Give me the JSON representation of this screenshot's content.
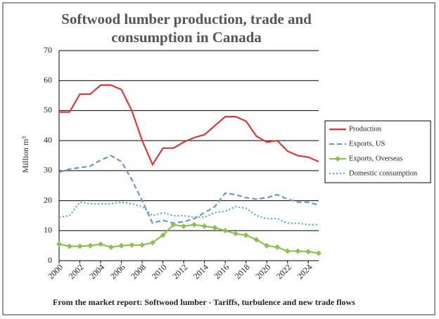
{
  "chart_data": {
    "type": "line",
    "title": "Softwood lumber production, trade and consumption in Canada",
    "y_label": "Million m³",
    "note": "From the market report: Softwood lumber - Tariffs, turbulence and new trade flows",
    "x": [
      2000,
      2001,
      2002,
      2003,
      2004,
      2005,
      2006,
      2007,
      2008,
      2009,
      2010,
      2011,
      2012,
      2013,
      2014,
      2015,
      2016,
      2017,
      2018,
      2019,
      2020,
      2021,
      2022,
      2023,
      2024,
      2025
    ],
    "xlim": [
      2000,
      2025
    ],
    "xticks": [
      2000,
      2002,
      2004,
      2006,
      2008,
      2010,
      2012,
      2014,
      2016,
      2018,
      2020,
      2022,
      2024
    ],
    "ylim": [
      0,
      70
    ],
    "yticks": [
      0,
      10,
      20,
      30,
      40,
      50,
      60,
      70
    ],
    "grid": true,
    "legend": "right",
    "series": [
      {
        "name": "Production",
        "color": "#d9383a",
        "style": "solid",
        "values": [
          49.5,
          49.5,
          55.5,
          55.5,
          58.5,
          58.5,
          57,
          50,
          40,
          32,
          37.5,
          37.5,
          39.5,
          41,
          42,
          45,
          48,
          48,
          46.5,
          41.5,
          39.5,
          40,
          36.5,
          35,
          34.5,
          33
        ]
      },
      {
        "name": "Exports, US",
        "color": "#6f95c9",
        "style": "dashed",
        "values": [
          29.5,
          30.5,
          31,
          31.5,
          33.5,
          35,
          33,
          27,
          20,
          12.5,
          13.5,
          12.5,
          13,
          14,
          16,
          18,
          22.5,
          22,
          21,
          20.5,
          21,
          22,
          20.5,
          19.5,
          19.5,
          18.5
        ]
      },
      {
        "name": "Exports, Overseas",
        "color": "#8cc152",
        "style": "solid",
        "marker": "diamond",
        "values": [
          5.5,
          4.8,
          4.8,
          5,
          5.5,
          4.5,
          5,
          5.2,
          5.2,
          6,
          8.5,
          12,
          11.5,
          12,
          11.5,
          11,
          10,
          9,
          8.5,
          7,
          5,
          4.5,
          3.2,
          3.2,
          3,
          2.5
        ]
      },
      {
        "name": "Domestic consumption",
        "color": "#4fa8d8",
        "style": "dotted",
        "values": [
          14.5,
          15,
          19.5,
          19,
          19,
          19,
          19.5,
          19,
          18,
          15,
          16,
          15,
          15,
          14.5,
          14.5,
          16,
          16.5,
          18,
          17.5,
          15,
          14,
          14,
          12.5,
          12.5,
          12,
          12
        ]
      }
    ]
  }
}
